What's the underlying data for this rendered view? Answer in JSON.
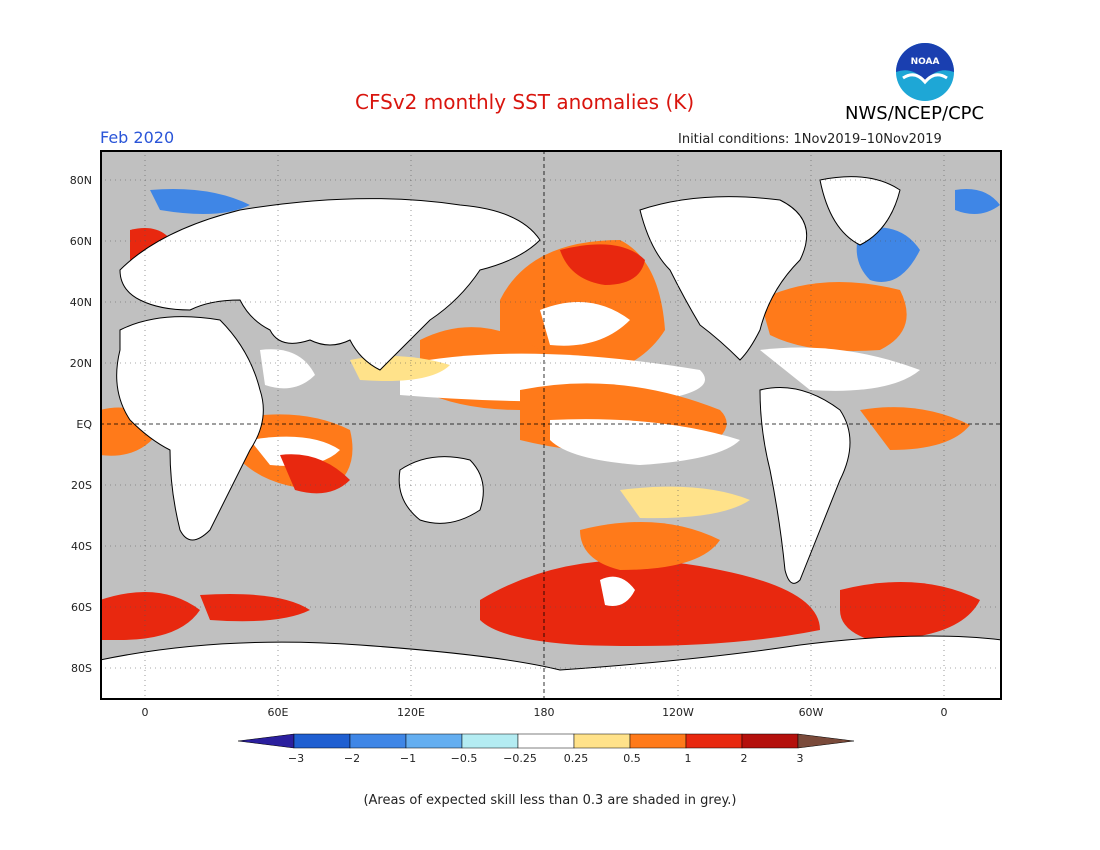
{
  "header": {
    "title": "CFSv2 monthly SST anomalies (K)",
    "month": "Feb 2020",
    "initial_conditions": "Initial conditions: 1Nov2019–10Nov2019",
    "organization": "NWS/NCEP/CPC",
    "logo_text": "NOAA",
    "logo_icon": "noaa-logo-icon"
  },
  "axes": {
    "lat_labels": [
      "80N",
      "60N",
      "40N",
      "20N",
      "EQ",
      "20S",
      "40S",
      "60S",
      "80S"
    ],
    "lon_labels": [
      "0",
      "60E",
      "120E",
      "180",
      "120W",
      "60W",
      "0"
    ]
  },
  "colorbar": {
    "tick_labels": [
      "−3",
      "−2",
      "−1",
      "−0.5",
      "−0.25",
      "0.25",
      "0.5",
      "1",
      "2",
      "3"
    ],
    "colors": [
      "#2b1f9e",
      "#1f5fd1",
      "#3f86e6",
      "#64aef0",
      "#b4ecf2",
      "#ffffff",
      "#ffe28a",
      "#ff7a1a",
      "#e8280f",
      "#b4100c",
      "#7a4a3a"
    ]
  },
  "footnote": "(Areas of expected skill less than 0.3 are shaded in grey.)",
  "map": {
    "ocean_grey": "#c0c0c0",
    "land_color": "#ffffff",
    "coast_color": "#000000"
  }
}
